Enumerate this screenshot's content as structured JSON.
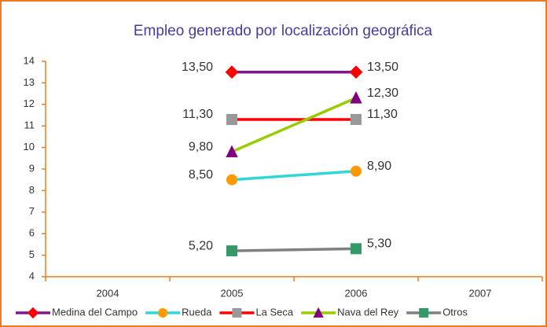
{
  "chart_data": {
    "type": "line",
    "title": "Empleo generado por localización geográfica",
    "categories": [
      "2004",
      "2005",
      "2006",
      "2007"
    ],
    "ylim": [
      4,
      14
    ],
    "yticks": [
      4,
      5,
      6,
      7,
      8,
      9,
      10,
      11,
      12,
      13,
      14
    ],
    "axis_color": "#f07a20",
    "title_color": "#4b3b9b",
    "legend": "bottom",
    "series": [
      {
        "name": "Medina del Campo",
        "color": "#7b1a8c",
        "marker": "diamond",
        "marker_color": "#ff0000",
        "values": [
          null,
          13.5,
          13.5,
          null
        ],
        "value_labels": [
          null,
          "13,50",
          "13,50",
          null
        ]
      },
      {
        "name": "Rueda",
        "color": "#33d6d6",
        "marker": "circle",
        "marker_color": "#ff9900",
        "values": [
          null,
          8.5,
          8.9,
          null
        ],
        "value_labels": [
          null,
          "8,50",
          "8,90",
          null
        ]
      },
      {
        "name": "La Seca",
        "color": "#ff0000",
        "marker": "square",
        "marker_color": "#999999",
        "values": [
          null,
          11.3,
          11.3,
          null
        ],
        "value_labels": [
          null,
          "11,30",
          "11,30",
          null
        ]
      },
      {
        "name": "Nava del Rey",
        "color": "#99cc00",
        "marker": "triangle",
        "marker_color": "#800080",
        "values": [
          null,
          9.8,
          12.3,
          null
        ],
        "value_labels": [
          null,
          "9,80",
          "12,30",
          null
        ]
      },
      {
        "name": "Otros",
        "color": "#808080",
        "marker": "square",
        "marker_color": "#339966",
        "values": [
          null,
          5.2,
          5.3,
          null
        ],
        "value_labels": [
          null,
          "5,20",
          "5,30",
          null
        ]
      }
    ]
  }
}
